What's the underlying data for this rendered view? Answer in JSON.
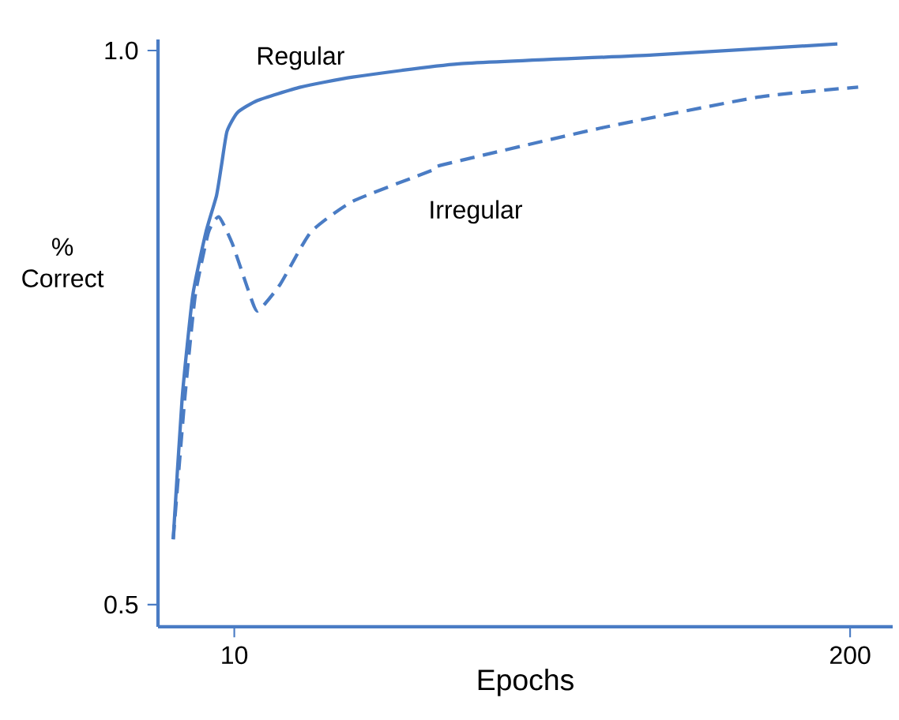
{
  "chart_data": {
    "type": "line",
    "xlabel": "Epochs",
    "ylabel": "% Correct",
    "log": "x",
    "xlim": [
      6.9,
      246
    ],
    "ylim": [
      0.48,
      1.01
    ],
    "xticks": [
      10,
      200
    ],
    "yticks": [
      0.5,
      {
        "value": 1.0,
        "label": "1.0"
      }
    ],
    "grid": false,
    "legend": false,
    "marker": "none",
    "series": [
      {
        "name": "Regular",
        "color": "#4a7cc4",
        "line_style": "solid",
        "x": [
          7.43,
          7.76,
          8.17,
          8.71,
          9.17,
          9.4,
          9.65,
          10.15,
          11.2,
          13.8,
          17.8,
          29.8,
          76.6,
          188
        ],
        "values": [
          0.559,
          0.686,
          0.779,
          0.836,
          0.869,
          0.897,
          0.927,
          0.944,
          0.955,
          0.967,
          0.976,
          0.988,
          0.996,
          1.006
        ]
      },
      {
        "name": "Irregular",
        "color": "#4a7cc4",
        "line_style": "dashed",
        "x": [
          7.43,
          7.86,
          8.27,
          8.82,
          9.28,
          9.9,
          10.7,
          11.2,
          12.5,
          14.5,
          17.8,
          26.2,
          27.6,
          59.4,
          128,
          208
        ],
        "values": [
          0.559,
          0.686,
          0.779,
          0.836,
          0.85,
          0.826,
          0.784,
          0.765,
          0.789,
          0.836,
          0.864,
          0.892,
          0.897,
          0.93,
          0.958,
          0.967
        ]
      }
    ]
  }
}
